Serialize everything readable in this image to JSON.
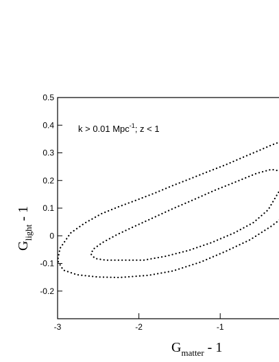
{
  "chart_data": {
    "type": "line",
    "title": "",
    "annotation": {
      "text": "k > 0.01 Mpc",
      "superscript": "-1",
      "suffix": "; z < 1"
    },
    "xlabel": {
      "main": "G",
      "subscript": "matter",
      "suffix": " - 1"
    },
    "ylabel": {
      "main": "G",
      "subscript": "light",
      "suffix": " - 1"
    },
    "xlim": [
      -3.0,
      -0.26
    ],
    "ylim": [
      -0.3,
      0.5
    ],
    "x_ticks": [
      -3,
      -2,
      -1
    ],
    "x_tick_labels": [
      "-3",
      "-2",
      "-1"
    ],
    "y_ticks": [
      -0.2,
      -0.1,
      0.0,
      0.1,
      0.2,
      0.3,
      0.4,
      0.5
    ],
    "y_tick_labels": [
      "-0.2",
      "-0.1",
      "0",
      "0.1",
      "0.2",
      "0.3",
      "0.4",
      "0.5"
    ],
    "grid": false,
    "line_style": "dotted",
    "line_color": "#000000",
    "series": [
      {
        "kind": "outer-contour",
        "x": [
          -0.26,
          -0.37,
          -0.51,
          -0.71,
          -0.93,
          -1.15,
          -1.37,
          -1.58,
          -1.8,
          -2.02,
          -2.24,
          -2.46,
          -2.67,
          -2.84,
          -2.97,
          -3.0,
          -2.93,
          -2.76,
          -2.51,
          -2.24,
          -1.88,
          -1.58,
          -1.24,
          -0.93,
          -0.63,
          -0.37,
          -0.26
        ],
        "y": [
          0.34,
          0.328,
          0.31,
          0.285,
          0.257,
          0.232,
          0.206,
          0.182,
          0.155,
          0.13,
          0.106,
          0.08,
          0.045,
          0.01,
          -0.045,
          -0.09,
          -0.124,
          -0.141,
          -0.149,
          -0.151,
          -0.143,
          -0.127,
          -0.095,
          -0.056,
          -0.014,
          0.035,
          0.06
        ]
      },
      {
        "kind": "inner-contour",
        "x": [
          -0.26,
          -0.37,
          -0.55,
          -0.8,
          -1.07,
          -1.33,
          -1.59,
          -1.84,
          -2.07,
          -2.27,
          -2.45,
          -2.56,
          -2.59,
          -2.54,
          -2.41,
          -2.2,
          -1.94,
          -1.67,
          -1.39,
          -1.11,
          -0.83,
          -0.59,
          -0.41,
          -0.3,
          -0.26
        ],
        "y": [
          0.234,
          0.24,
          0.226,
          0.196,
          0.164,
          0.13,
          0.097,
          0.063,
          0.032,
          0.004,
          -0.025,
          -0.048,
          -0.066,
          -0.082,
          -0.088,
          -0.088,
          -0.088,
          -0.074,
          -0.053,
          -0.025,
          0.01,
          0.048,
          0.094,
          0.149,
          0.168
        ]
      }
    ]
  }
}
